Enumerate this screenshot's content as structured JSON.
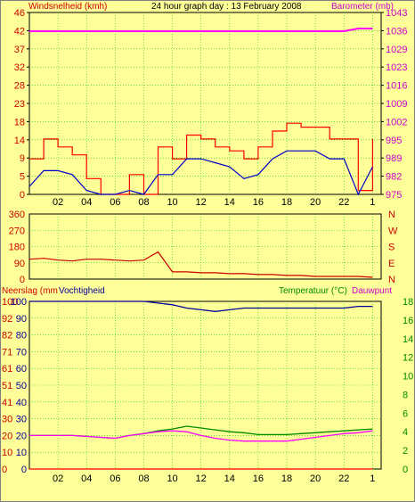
{
  "header": {
    "wind_label": "Windsnelheid (kmh)",
    "title": "24 hour graph day : 13 February 2008",
    "baro_label": "Barometer (mb)"
  },
  "lower_labels": {
    "rain": "Neerslag (mm",
    "humidity": "Vochtigheid",
    "temperature": "Temperatuur (°C)",
    "dewpoint": "Dauwpunt"
  },
  "colors": {
    "background": "#FFFF99",
    "wind": "#FF0000",
    "wind_avg": "#0000CC",
    "barometer": "#FF00FF",
    "direction": "#CC0000",
    "humidity": "#000099",
    "temperature": "#008800",
    "dewpoint": "#FF00FF",
    "rain": "#FF0000",
    "grid": "#00CC00"
  },
  "chart_data": [
    {
      "type": "line",
      "name": "wind-barometer",
      "title": "24 hour graph day : 13 February 2008",
      "ylabel": "Windsnelheid (kmh)",
      "y2label": "Barometer (mb)",
      "x_ticks": [
        "02",
        "04",
        "06",
        "08",
        "10",
        "12",
        "14",
        "16",
        "18",
        "20",
        "22",
        "1"
      ],
      "y_ticks": [
        "0",
        "5",
        "9",
        "14",
        "18",
        "23",
        "28",
        "32",
        "37",
        "42",
        "46"
      ],
      "y2_ticks": [
        "975",
        "982",
        "989",
        "995",
        "1002",
        "1009",
        "1016",
        "1023",
        "1029",
        "1036",
        "1043"
      ],
      "ylim": [
        0,
        46
      ],
      "y2lim": [
        975,
        1043
      ],
      "x": [
        0,
        1,
        2,
        3,
        4,
        5,
        6,
        7,
        8,
        9,
        10,
        11,
        12,
        13,
        14,
        15,
        16,
        17,
        18,
        19,
        20,
        21,
        22,
        23,
        24
      ],
      "series": [
        {
          "name": "gust",
          "values": [
            9,
            14,
            12,
            10,
            4,
            0,
            0,
            5,
            0,
            12,
            9,
            15,
            14,
            12,
            11,
            9,
            12,
            16,
            18,
            17,
            17,
            14,
            14,
            1,
            14
          ]
        },
        {
          "name": "average",
          "values": [
            2,
            6,
            6,
            5,
            1,
            0,
            0,
            1,
            0,
            5,
            5,
            9,
            9,
            8,
            7,
            4,
            5,
            9,
            11,
            11,
            11,
            9,
            9,
            0,
            7
          ]
        },
        {
          "name": "barometer",
          "values": [
            1036,
            1036,
            1036,
            1036,
            1036,
            1036,
            1036,
            1036,
            1036,
            1036,
            1036,
            1036,
            1036,
            1036,
            1036,
            1036,
            1036,
            1036,
            1036,
            1036,
            1036,
            1036,
            1036,
            1037,
            1037
          ]
        }
      ],
      "grid": true
    },
    {
      "type": "line",
      "name": "wind-direction",
      "y_ticks": [
        "360",
        "270",
        "180",
        "90",
        "0"
      ],
      "y2_ticks": [
        "N",
        "W",
        "S",
        "E",
        "N"
      ],
      "ylim": [
        0,
        360
      ],
      "x": [
        0,
        1,
        2,
        3,
        4,
        5,
        6,
        7,
        8,
        9,
        10,
        11,
        12,
        13,
        14,
        15,
        16,
        17,
        18,
        19,
        20,
        21,
        22,
        23,
        24
      ],
      "values": [
        110,
        115,
        105,
        100,
        110,
        110,
        105,
        100,
        105,
        150,
        40,
        40,
        35,
        35,
        30,
        30,
        25,
        25,
        20,
        20,
        15,
        15,
        15,
        15,
        10
      ],
      "grid": true
    },
    {
      "type": "line",
      "name": "humidity-temperature",
      "ylabel": "Neerslag (mm",
      "y_ticks": [
        "0",
        "10",
        "20",
        "30",
        "41",
        "51",
        "61",
        "71",
        "82",
        "92",
        "100"
      ],
      "y_ticks_inner": [
        "0",
        "10",
        "20",
        "30",
        "40",
        "50",
        "60",
        "70",
        "80",
        "90",
        "100"
      ],
      "y2_ticks": [
        "0",
        "2",
        "4",
        "6",
        "8",
        "10",
        "12",
        "14",
        "16",
        "18"
      ],
      "ylim": [
        0,
        100
      ],
      "y2lim": [
        0,
        18
      ],
      "x_ticks": [
        "02",
        "04",
        "06",
        "08",
        "10",
        "12",
        "14",
        "16",
        "18",
        "20",
        "22",
        "1"
      ],
      "x": [
        0,
        1,
        2,
        3,
        4,
        5,
        6,
        7,
        8,
        9,
        10,
        11,
        12,
        13,
        14,
        15,
        16,
        17,
        18,
        19,
        20,
        21,
        22,
        23,
        24
      ],
      "series": [
        {
          "name": "Vochtigheid",
          "axis": "left",
          "values": [
            100,
            100,
            100,
            100,
            100,
            100,
            100,
            100,
            100,
            99,
            98,
            96,
            95,
            94,
            95,
            96,
            96,
            96,
            96,
            96,
            96,
            96,
            96,
            97,
            97
          ]
        },
        {
          "name": "Temperatuur (°C)",
          "axis": "right",
          "values": [
            3.6,
            3.6,
            3.6,
            3.6,
            3.5,
            3.4,
            3.3,
            3.6,
            3.8,
            4.1,
            4.3,
            4.6,
            4.4,
            4.2,
            4.0,
            3.9,
            3.7,
            3.7,
            3.7,
            3.8,
            3.9,
            4.0,
            4.1,
            4.2,
            4.3
          ]
        },
        {
          "name": "Dauwpunt",
          "axis": "right",
          "values": [
            3.6,
            3.6,
            3.6,
            3.6,
            3.5,
            3.4,
            3.3,
            3.6,
            3.8,
            4.0,
            4.1,
            4.0,
            3.6,
            3.3,
            3.1,
            3.0,
            3.0,
            3.0,
            3.0,
            3.2,
            3.4,
            3.6,
            3.8,
            3.9,
            4.1
          ]
        },
        {
          "name": "Neerslag (mm",
          "axis": "left",
          "values": [
            0,
            0,
            0,
            0,
            0,
            0,
            0,
            0,
            0,
            0,
            0,
            0,
            0,
            0,
            0,
            0,
            0,
            0,
            0,
            0,
            0,
            0,
            0,
            0,
            0
          ]
        }
      ],
      "grid": true
    }
  ]
}
